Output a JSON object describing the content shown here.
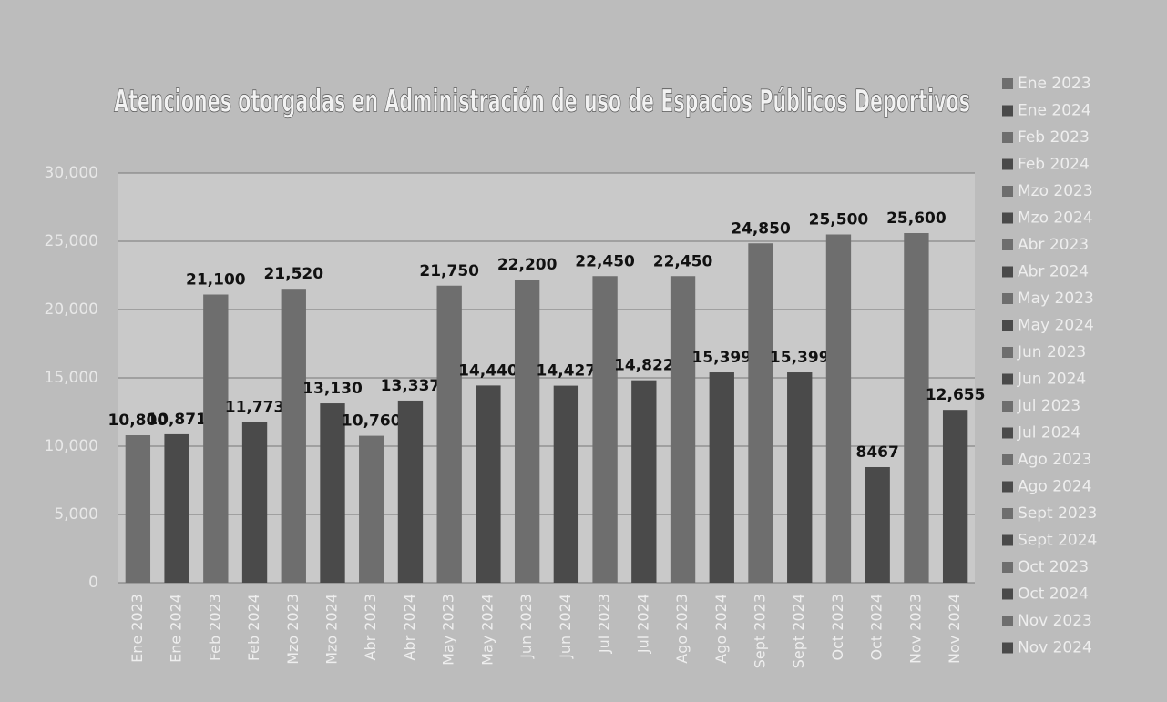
{
  "chart_data": {
    "type": "bar",
    "title": "Atenciones otorgadas en Administración de uso de Espacios Públicos Deportivos",
    "categories": [
      "Ene 2023",
      "Ene 2024",
      "Feb 2023",
      "Feb 2024",
      "Mzo 2023",
      "Mzo 2024",
      "Abr 2023",
      "Abr 2024",
      "May 2023",
      "May 2024",
      "Jun 2023",
      "Jun 2024",
      "Jul 2023",
      "Jul 2024",
      "Ago 2023",
      "Ago 2024",
      "Sept 2023",
      "Sept 2024",
      "Oct 2023",
      "Oct 2024",
      "Nov 2023",
      "Nov 2024"
    ],
    "values": [
      10800,
      10871,
      21100,
      11773,
      21520,
      13130,
      10760,
      13337,
      21750,
      14440,
      22200,
      14427,
      22450,
      14822,
      22450,
      15399,
      24850,
      15399,
      25500,
      8467,
      25600,
      12655
    ],
    "value_labels": [
      "10,800",
      "10,871",
      "21,100",
      "11,773",
      "21,520",
      "13,130",
      "10,760",
      "13,337",
      "21,750",
      "14,440",
      "22,200",
      "14,427",
      "22,450",
      "14,822",
      "22,450",
      "15,399",
      "24,850",
      "15,399",
      "25,500",
      "8467",
      "25,600",
      "12,655"
    ],
    "colors": [
      "#6e6e6e",
      "#4a4a4a",
      "#6e6e6e",
      "#4a4a4a",
      "#6e6e6e",
      "#4a4a4a",
      "#6e6e6e",
      "#4a4a4a",
      "#6e6e6e",
      "#4a4a4a",
      "#6e6e6e",
      "#4a4a4a",
      "#6e6e6e",
      "#4a4a4a",
      "#6e6e6e",
      "#4a4a4a",
      "#6e6e6e",
      "#4a4a4a",
      "#6e6e6e",
      "#4a4a4a",
      "#6e6e6e",
      "#4a4a4a"
    ],
    "ylim": [
      0,
      30000
    ],
    "yticks": [
      0,
      {
        "value": 5000,
        "label": "5,000"
      },
      {
        "value": 10000,
        "label": "10,000"
      },
      {
        "value": 15000,
        "label": "15,000"
      },
      {
        "value": 20000,
        "label": "20,000"
      },
      {
        "value": 25000,
        "label": "25,000"
      },
      {
        "value": 30000,
        "label": "30,000"
      }
    ],
    "grid": true,
    "legend": "right"
  }
}
